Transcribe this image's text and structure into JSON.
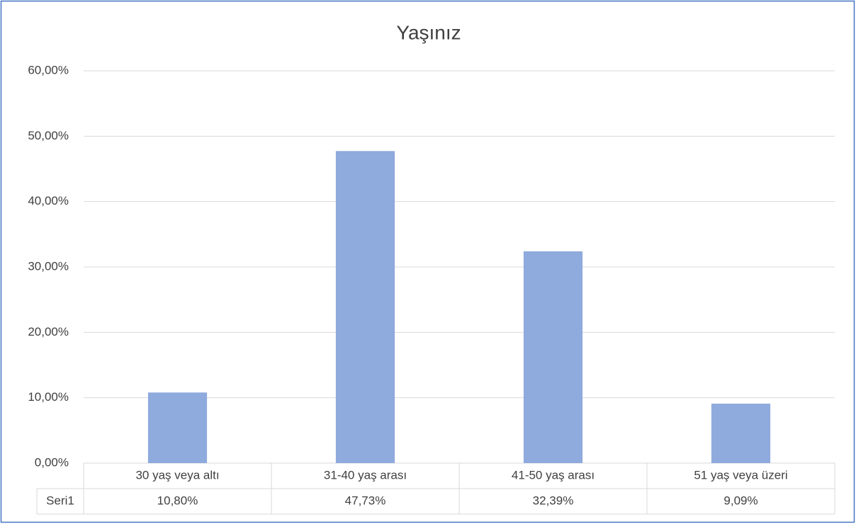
{
  "chart_data": {
    "type": "bar",
    "title": "Yaşınız",
    "categories": [
      "30 yaş veya altı",
      "31-40 yaş arası",
      "41-50 yaş arası",
      "51 yaş veya üzeri"
    ],
    "series": [
      {
        "name": "Seri1",
        "color": "#8faadc",
        "values": [
          10.8,
          47.73,
          32.39,
          9.09
        ],
        "value_labels": [
          "10,80%",
          "47,73%",
          "32,39%",
          "9,09%"
        ]
      }
    ],
    "ylim": [
      0,
      60
    ],
    "yticks": [
      {
        "value": 0,
        "label": "0,00%"
      },
      {
        "value": 10,
        "label": "10,00%"
      },
      {
        "value": 20,
        "label": "20,00%"
      },
      {
        "value": 30,
        "label": "30,00%"
      },
      {
        "value": 40,
        "label": "40,00%"
      },
      {
        "value": 50,
        "label": "50,00%"
      },
      {
        "value": 60,
        "label": "60,00%"
      }
    ],
    "grid": true
  }
}
